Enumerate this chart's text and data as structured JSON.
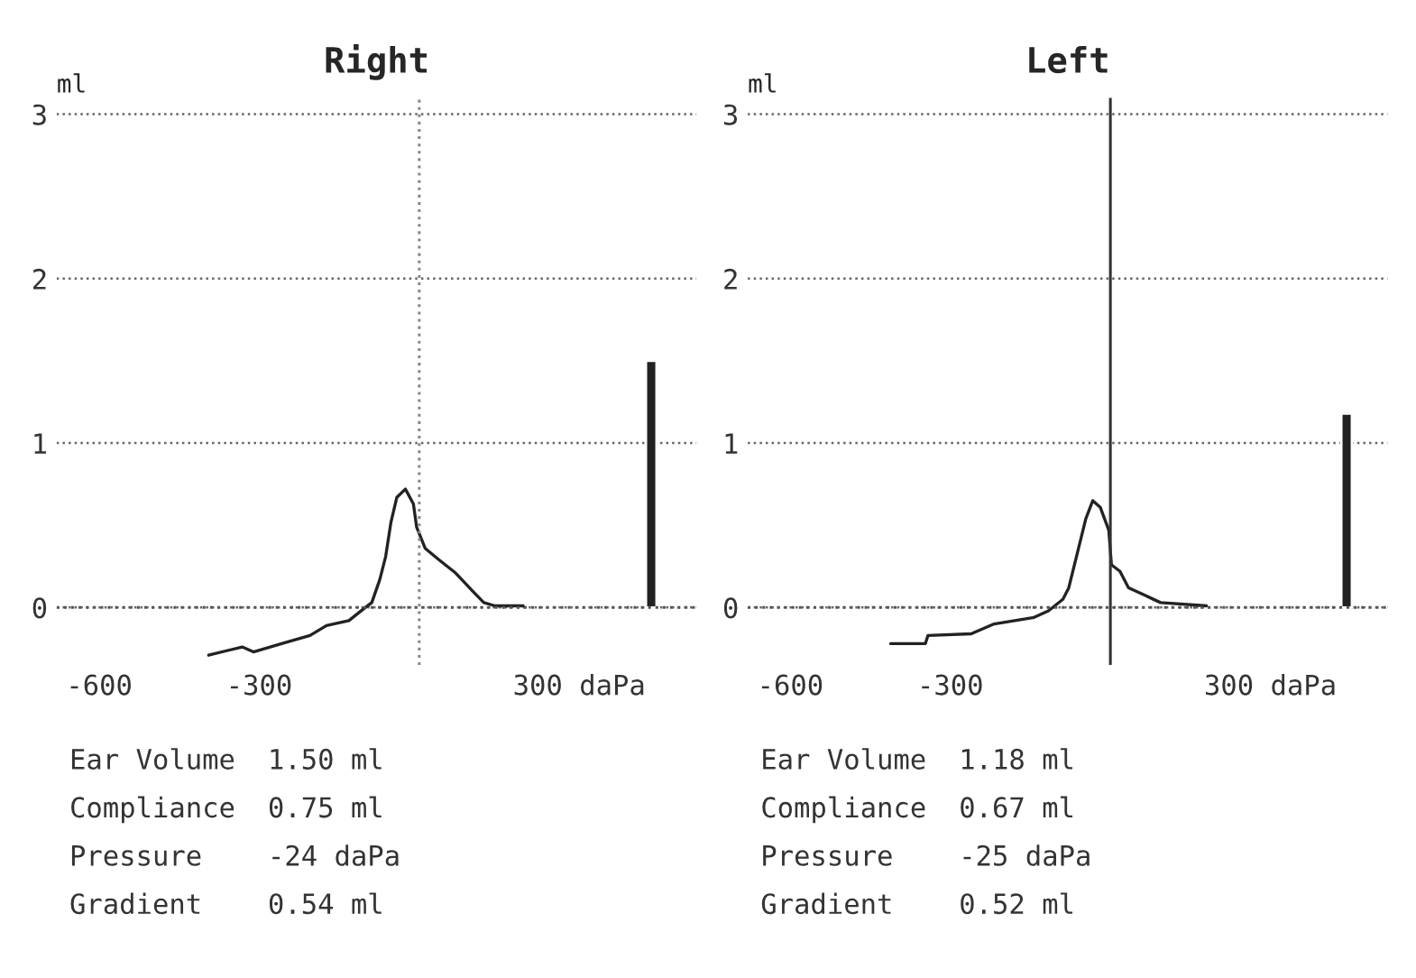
{
  "chart_data": [
    {
      "type": "line",
      "title": "Right",
      "ylabel": "ml",
      "series": [
        {
          "color": "#222222",
          "x": [
            -395,
            -332,
            -311,
            -258,
            -205,
            -174,
            -132,
            -105,
            -89,
            -74,
            -63,
            -53,
            -42,
            -26,
            -11,
            -5,
            11,
            37,
            68,
            100,
            121,
            142,
            195
          ],
          "values": [
            -0.29,
            -0.24,
            -0.27,
            -0.22,
            -0.17,
            -0.11,
            -0.08,
            -0.01,
            0.03,
            0.17,
            0.31,
            0.52,
            0.67,
            0.72,
            0.63,
            0.49,
            0.36,
            0.29,
            0.21,
            0.1,
            0.03,
            0.01,
            0.01
          ]
        },
        {
          "type": "bar",
          "color": "#222222",
          "x": [
            435
          ],
          "values": [
            1.5
          ]
        }
      ],
      "xlim": [
        -680,
        520
      ],
      "xticks": [
        -600,
        -300,
        {
          "value": 300,
          "label": "300 daPa"
        }
      ],
      "ylim": [
        -0.35,
        3.1
      ],
      "yticks": [
        0,
        1,
        2,
        3
      ],
      "grid": "y",
      "ref_lines": [
        {
          "axis": "y",
          "value": 0,
          "color": "#555555",
          "line_style": "dotted"
        },
        {
          "axis": "x",
          "value": 0,
          "color": "#888888",
          "line_style": "dotted"
        }
      ],
      "annotations": [
        "Ear Volume",
        "1.50 ml",
        "Compliance",
        "0.75 ml",
        "Pressure",
        "-24 daPa",
        "Gradient",
        "0.54 ml"
      ]
    },
    {
      "type": "line",
      "title": "Left",
      "ylabel": "ml",
      "series": [
        {
          "color": "#222222",
          "x": [
            -412,
            -347,
            -342,
            -261,
            -218,
            -143,
            -116,
            -89,
            -78,
            -62,
            -46,
            -33,
            -19,
            -3,
            2,
            18,
            34,
            61,
            94,
            180
          ],
          "values": [
            -0.22,
            -0.22,
            -0.17,
            -0.16,
            -0.1,
            -0.06,
            -0.02,
            0.05,
            0.12,
            0.33,
            0.54,
            0.65,
            0.61,
            0.47,
            0.26,
            0.22,
            0.12,
            0.08,
            0.03,
            0.01
          ]
        },
        {
          "type": "bar",
          "color": "#222222",
          "x": [
            443
          ],
          "values": [
            1.18
          ]
        }
      ],
      "xlim": [
        -680,
        520
      ],
      "xticks": [
        -600,
        -300,
        {
          "value": 300,
          "label": "300 daPa"
        }
      ],
      "ylim": [
        -0.35,
        3.1
      ],
      "yticks": [
        0,
        1,
        2,
        3
      ],
      "grid": "y",
      "ref_lines": [
        {
          "axis": "y",
          "value": 0,
          "color": "#555555",
          "line_style": "dotted"
        },
        {
          "axis": "x",
          "value": 0,
          "color": "#333333",
          "line_style": "solid"
        }
      ],
      "annotations": [
        "Ear Volume",
        "1.18 ml",
        "Compliance",
        "0.67 ml",
        "Pressure",
        "-25 daPa",
        "Gradient",
        "0.52 ml"
      ]
    }
  ]
}
